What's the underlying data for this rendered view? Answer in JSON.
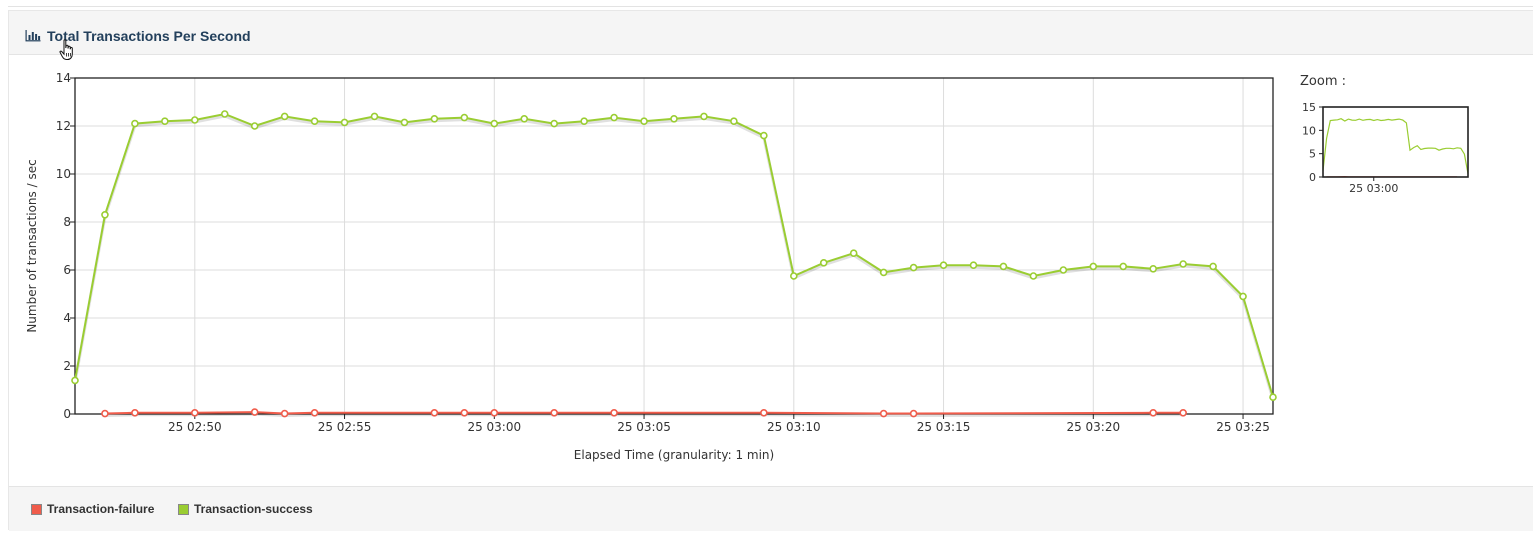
{
  "panel": {
    "title": "Total Transactions Per Second",
    "title_icon": "bar-chart-icon"
  },
  "zoom": {
    "label": "Zoom :",
    "y_ticks": [
      "15",
      "10",
      "5",
      "0"
    ],
    "x_tick": "25 03:00"
  },
  "legend": {
    "items": [
      {
        "label": "Transaction-failure",
        "color": "#f05c4b"
      },
      {
        "label": "Transaction-success",
        "color": "#9acd32"
      }
    ]
  },
  "chart_data": {
    "type": "line",
    "xlabel": "Elapsed Time (granularity: 1 min)",
    "ylabel": "Number of transactions / sec",
    "ylim": [
      0,
      14
    ],
    "y_ticks": [
      0,
      2,
      4,
      6,
      8,
      10,
      12,
      14
    ],
    "x_range": [
      "25 02:46",
      "25 03:26"
    ],
    "x_ticks": [
      "25 02:50",
      "25 02:55",
      "25 03:00",
      "25 03:05",
      "25 03:10",
      "25 03:15",
      "25 03:20",
      "25 03:25"
    ],
    "grid": true,
    "legend_position": "bottom",
    "series": [
      {
        "name": "Transaction-success",
        "color": "#9acd32",
        "points": [
          [
            "25 02:46",
            1.4
          ],
          [
            "25 02:47",
            8.3
          ],
          [
            "25 02:48",
            12.1
          ],
          [
            "25 02:49",
            12.2
          ],
          [
            "25 02:50",
            12.25
          ],
          [
            "25 02:51",
            12.5
          ],
          [
            "25 02:52",
            12.0
          ],
          [
            "25 02:53",
            12.4
          ],
          [
            "25 02:54",
            12.2
          ],
          [
            "25 02:55",
            12.15
          ],
          [
            "25 02:56",
            12.4
          ],
          [
            "25 02:57",
            12.15
          ],
          [
            "25 02:58",
            12.3
          ],
          [
            "25 02:59",
            12.35
          ],
          [
            "25 03:00",
            12.1
          ],
          [
            "25 03:01",
            12.3
          ],
          [
            "25 03:02",
            12.1
          ],
          [
            "25 03:03",
            12.2
          ],
          [
            "25 03:04",
            12.35
          ],
          [
            "25 03:05",
            12.2
          ],
          [
            "25 03:06",
            12.3
          ],
          [
            "25 03:07",
            12.4
          ],
          [
            "25 03:08",
            12.2
          ],
          [
            "25 03:09",
            11.6
          ],
          [
            "25 03:10",
            5.75
          ],
          [
            "25 03:11",
            6.3
          ],
          [
            "25 03:12",
            6.7
          ],
          [
            "25 03:13",
            5.9
          ],
          [
            "25 03:14",
            6.1
          ],
          [
            "25 03:15",
            6.2
          ],
          [
            "25 03:16",
            6.2
          ],
          [
            "25 03:17",
            6.15
          ],
          [
            "25 03:18",
            5.75
          ],
          [
            "25 03:19",
            6.0
          ],
          [
            "25 03:20",
            6.15
          ],
          [
            "25 03:21",
            6.15
          ],
          [
            "25 03:22",
            6.05
          ],
          [
            "25 03:23",
            6.25
          ],
          [
            "25 03:24",
            6.15
          ],
          [
            "25 03:25",
            4.9
          ],
          [
            "25 03:26",
            0.7
          ]
        ]
      },
      {
        "name": "Transaction-failure",
        "color": "#f05c4b",
        "points": [
          [
            "25 02:47",
            0.02
          ],
          [
            "25 02:48",
            0.05
          ],
          [
            "25 02:50",
            0.05
          ],
          [
            "25 02:52",
            0.08
          ],
          [
            "25 02:53",
            0.02
          ],
          [
            "25 02:54",
            0.05
          ],
          [
            "25 02:58",
            0.05
          ],
          [
            "25 02:59",
            0.05
          ],
          [
            "25 03:00",
            0.05
          ],
          [
            "25 03:02",
            0.05
          ],
          [
            "25 03:04",
            0.05
          ],
          [
            "25 03:09",
            0.05
          ],
          [
            "25 03:13",
            0.02
          ],
          [
            "25 03:14",
            0.02
          ],
          [
            "25 03:22",
            0.05
          ],
          [
            "25 03:23",
            0.05
          ]
        ]
      }
    ]
  }
}
